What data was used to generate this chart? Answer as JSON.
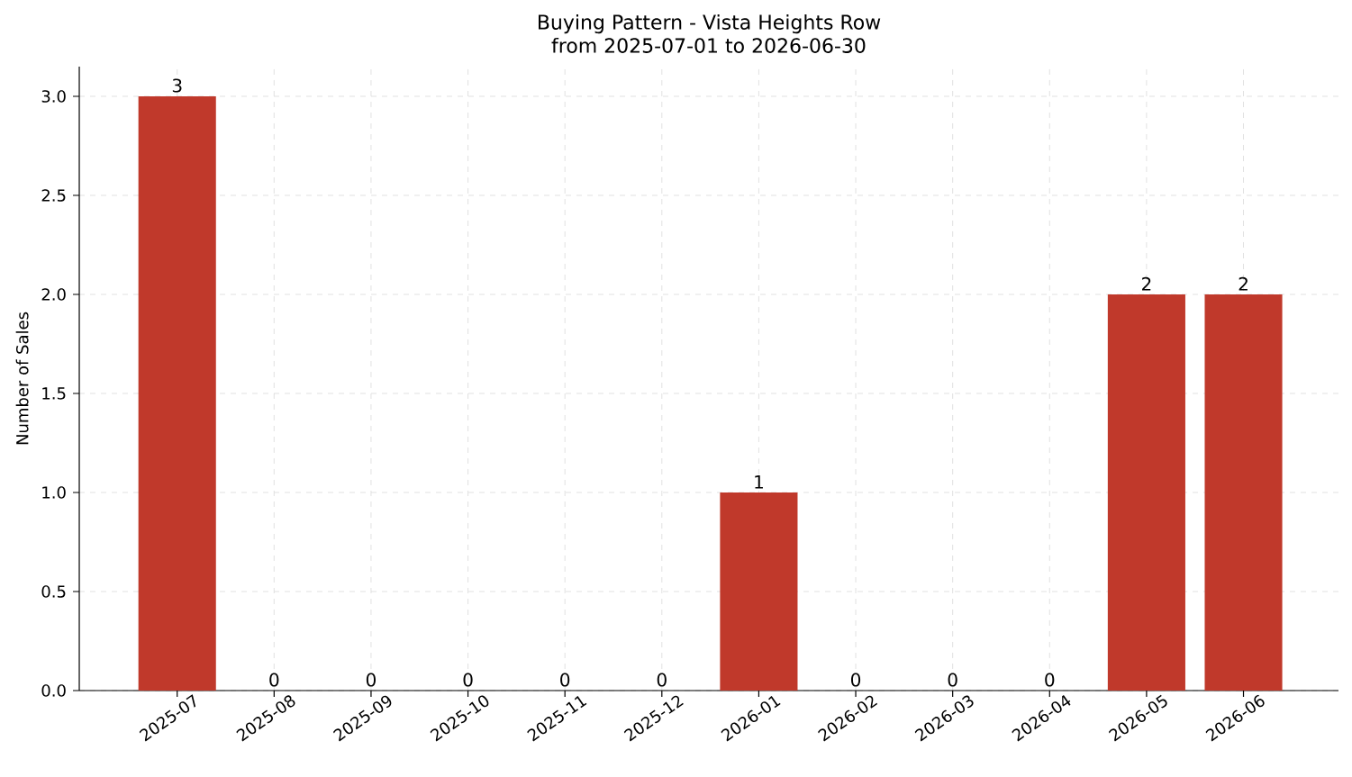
{
  "chart_data": {
    "type": "bar",
    "title": "Buying Pattern - Vista Heights Row",
    "subtitle": "from 2025-07-01 to 2026-06-30",
    "ylabel": "Number of Sales",
    "categories": [
      "2025-07",
      "2025-08",
      "2025-09",
      "2025-10",
      "2025-11",
      "2025-12",
      "2026-01",
      "2026-02",
      "2026-03",
      "2026-04",
      "2026-05",
      "2026-06"
    ],
    "values": [
      3,
      0,
      0,
      0,
      0,
      0,
      1,
      0,
      0,
      0,
      2,
      2
    ],
    "color": "#c0392b",
    "ylim": [
      0,
      3.15
    ],
    "yticks": [
      {
        "value": 0,
        "label": "0.0"
      },
      {
        "value": 0.5,
        "label": "0.5"
      },
      {
        "value": 1,
        "label": "1.0"
      },
      {
        "value": 1.5,
        "label": "1.5"
      },
      {
        "value": 2,
        "label": "2.0"
      },
      {
        "value": 2.5,
        "label": "2.5"
      },
      {
        "value": 3,
        "label": "3.0"
      }
    ],
    "grid": true,
    "data_labels": true
  }
}
